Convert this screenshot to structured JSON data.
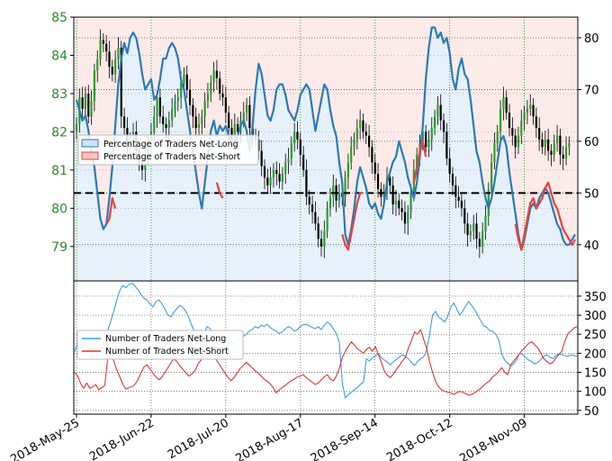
{
  "chart_data": [
    {
      "type": "line",
      "panel": "top",
      "x_tick_labels": [
        "2018-May-25",
        "2018-Jun-22",
        "2018-Jul-20",
        "2018-Aug-17",
        "2018-Sep-14",
        "2018-Oct-12",
        "2018-Nov-09"
      ],
      "left_axis": {
        "ticks": [
          "79",
          "80",
          "81",
          "82",
          "83",
          "84",
          "85"
        ],
        "ylim": [
          78.1,
          85.0
        ],
        "color": "#2a8a2a"
      },
      "right_axis": {
        "ticks": [
          "40",
          "50",
          "60",
          "70",
          "80"
        ],
        "ylim": [
          33,
          84
        ]
      },
      "reference_line": 50,
      "legend": [
        {
          "label": "Percentage of Traders Net-Long",
          "color": "#2a7ab8",
          "fill": "#cfe2f7"
        },
        {
          "label": "Percentage of Traders Net-Short",
          "color": "#e8433a",
          "fill": "#f6c9c5"
        }
      ],
      "series": [
        {
          "name": "Percentage of Traders Net-Long (%)",
          "x": [
            0,
            1,
            2,
            3,
            4,
            5,
            6,
            7,
            8,
            9,
            10,
            11,
            12,
            13,
            14,
            15,
            16,
            17,
            18,
            19,
            20,
            21,
            22,
            23,
            24,
            25,
            26,
            27,
            28,
            29,
            30,
            31,
            32,
            33,
            34,
            35,
            36,
            37,
            38,
            39,
            40,
            41,
            42,
            43,
            44,
            45,
            46,
            47,
            48,
            49,
            50,
            51,
            52,
            53,
            54,
            55,
            56,
            57,
            58,
            59,
            60,
            61,
            62,
            63,
            64,
            65,
            66,
            67,
            68,
            69,
            70,
            71,
            72,
            73,
            74,
            75,
            76,
            77,
            78,
            79,
            80,
            81,
            82,
            83,
            84,
            85,
            86,
            87,
            88,
            89,
            90,
            91,
            92,
            93,
            94,
            95,
            96,
            97,
            98,
            99,
            100,
            101,
            102,
            103,
            104,
            105,
            106,
            107,
            108,
            109,
            110,
            111,
            112,
            113,
            114,
            115,
            116,
            117,
            118,
            119,
            120,
            121,
            122,
            123,
            124,
            125,
            126,
            127,
            128,
            129,
            130,
            131,
            132,
            133,
            134,
            135,
            136,
            137,
            138,
            139,
            140,
            141,
            142,
            143,
            144,
            145,
            146,
            147,
            148,
            149,
            150,
            151,
            152,
            153,
            154,
            155,
            156,
            157,
            158,
            159,
            160,
            161,
            162,
            163,
            164,
            165,
            166,
            167
          ],
          "values": [
            68,
            66,
            64,
            65,
            62,
            58,
            55,
            50,
            45,
            43,
            44,
            49,
            55,
            63,
            71,
            76,
            79,
            77,
            80,
            81,
            80,
            77,
            73,
            70,
            71,
            72,
            68,
            69,
            72,
            76,
            76,
            78,
            79,
            78,
            76,
            72,
            70,
            66,
            62,
            58,
            54,
            50,
            47,
            52,
            57,
            62,
            64,
            61,
            63,
            62,
            63,
            61,
            60,
            60,
            61,
            63,
            64,
            62,
            58,
            63,
            70,
            75,
            73,
            69,
            65,
            64,
            66,
            70,
            71,
            71,
            69,
            66,
            65,
            64,
            66,
            69,
            70,
            71,
            70,
            66,
            62,
            65,
            68,
            71,
            70,
            66,
            63,
            61,
            56,
            52,
            42,
            40,
            43,
            47,
            52,
            55,
            53,
            51,
            48,
            47,
            48,
            46,
            45,
            48,
            52,
            54,
            56,
            57,
            60,
            58,
            56,
            53,
            51,
            49,
            52,
            57,
            63,
            72,
            78,
            82,
            82,
            80,
            81,
            79,
            80,
            77,
            72,
            70,
            74,
            76,
            73,
            72,
            68,
            63,
            58,
            56,
            52,
            49,
            47,
            49,
            52,
            56,
            60,
            61,
            59,
            54,
            50,
            46,
            42,
            39,
            41,
            44,
            47,
            48,
            47,
            49,
            50,
            51,
            50,
            48,
            46,
            44,
            43,
            41,
            40,
            40,
            41,
            42
          ]
        },
        {
          "name": "Percentage of Traders Net-Short (%)",
          "segments": [
            {
              "x": [
                10,
                11,
                12,
                13
              ],
              "values": [
                44,
                45,
                49,
                47
              ]
            },
            {
              "x": [
                47,
                48,
                49
              ],
              "values": [
                52,
                50,
                49
              ]
            },
            {
              "x": [
                89,
                90,
                91,
                92,
                93,
                94,
                95,
                96
              ],
              "values": [
                42,
                40,
                39,
                42,
                45,
                48,
                50,
                50
              ]
            },
            {
              "x": [
                113,
                114,
                115,
                116,
                117
              ],
              "values": [
                52,
                55,
                58,
                60,
                57
              ]
            },
            {
              "x": [
                147,
                148,
                149,
                150,
                151,
                152,
                153,
                154,
                155,
                156,
                157,
                158,
                159,
                160,
                161,
                162,
                163,
                164,
                165,
                166,
                167
              ],
              "values": [
                44,
                41,
                39,
                42,
                45,
                48,
                49,
                47,
                48,
                49,
                51,
                52,
                50,
                48,
                47,
                45,
                43,
                42,
                41,
                40,
                41
              ]
            }
          ]
        },
        {
          "name": "Price (candlesticks, left axis)",
          "close": [
            82.2,
            82.9,
            82.6,
            83.0,
            82.4,
            82.8,
            83.6,
            83.9,
            84.4,
            84.3,
            84.1,
            83.7,
            83.5,
            83.9,
            84.2,
            82.4,
            82.1,
            81.6,
            81.8,
            82.0,
            81.5,
            81.2,
            81.0,
            81.3,
            81.7,
            82.0,
            82.4,
            82.9,
            82.4,
            82.2,
            82.1,
            82.3,
            82.6,
            82.8,
            82.9,
            83.3,
            83.5,
            83.1,
            82.7,
            82.4,
            82.1,
            82.2,
            82.4,
            82.8,
            83.0,
            83.3,
            83.6,
            83.4,
            83.0,
            82.9,
            82.5,
            82.1,
            81.8,
            82.2,
            82.0,
            82.3,
            82.5,
            82.7,
            82.1,
            81.9,
            81.8,
            81.5,
            81.1,
            80.8,
            80.6,
            80.8,
            81.0,
            80.9,
            80.7,
            80.9,
            81.2,
            81.3,
            81.7,
            82.0,
            81.8,
            81.4,
            81.0,
            80.3,
            80.1,
            79.9,
            79.6,
            79.2,
            79.0,
            79.4,
            80.0,
            80.3,
            80.6,
            80.2,
            80.4,
            80.3,
            80.8,
            81.2,
            81.6,
            81.8,
            82.1,
            82.3,
            82.0,
            81.9,
            81.6,
            81.2,
            80.9,
            80.5,
            80.3,
            80.4,
            80.8,
            80.6,
            80.1,
            80.2,
            80.0,
            79.9,
            79.6,
            79.9,
            80.4,
            81.0,
            81.4,
            81.7,
            82.0,
            81.6,
            81.8,
            82.1,
            82.4,
            82.7,
            82.3,
            82.0,
            81.3,
            80.9,
            80.6,
            80.3,
            80.2,
            80.0,
            79.6,
            79.3,
            79.4,
            79.6,
            79.2,
            79.0,
            79.4,
            79.8,
            80.5,
            81.2,
            81.7,
            82.0,
            82.6,
            82.9,
            82.5,
            82.1,
            81.9,
            81.6,
            81.9,
            82.3,
            82.5,
            82.6,
            82.7,
            82.4,
            82.1,
            81.8,
            81.6,
            81.8,
            81.5,
            81.4,
            81.7,
            81.9,
            81.4,
            81.3,
            81.6,
            81.7
          ]
        }
      ]
    },
    {
      "type": "line",
      "panel": "bottom",
      "right_axis": {
        "ticks": [
          "50",
          "100",
          "150",
          "200",
          "250",
          "300",
          "350"
        ],
        "ylim": [
          40,
          390
        ]
      },
      "legend": [
        {
          "label": "Number of Traders Net-Long",
          "color": "#3a9ee8"
        },
        {
          "label": "Number of Traders Net-Short",
          "color": "#e8322c"
        }
      ],
      "series": [
        {
          "name": "Number of Traders Net-Long",
          "values": [
            205,
            228,
            240,
            236,
            222,
            210,
            190,
            188,
            196,
            215,
            240,
            260,
            285,
            310,
            340,
            365,
            378,
            372,
            380,
            384,
            376,
            368,
            355,
            345,
            340,
            330,
            322,
            335,
            340,
            330,
            316,
            300,
            296,
            308,
            318,
            326,
            320,
            310,
            292,
            272,
            255,
            240,
            230,
            252,
            270,
            265,
            248,
            232,
            222,
            214,
            208,
            220,
            230,
            226,
            235,
            240,
            244,
            250,
            258,
            262,
            270,
            266,
            274,
            270,
            276,
            268,
            262,
            258,
            252,
            256,
            264,
            270,
            266,
            258,
            262,
            270,
            275,
            276,
            272,
            268,
            265,
            270,
            262,
            274,
            282,
            276,
            264,
            252,
            230,
            120,
            82,
            92,
            98,
            104,
            110,
            118,
            124,
            185,
            180,
            188,
            194,
            198,
            188,
            182,
            176,
            170,
            178,
            184,
            190,
            196,
            192,
            185,
            176,
            168,
            178,
            186,
            190,
            206,
            250,
            300,
            310,
            295,
            290,
            282,
            296,
            320,
            332,
            318,
            300,
            310,
            324,
            336,
            326,
            314,
            300,
            286,
            272,
            268,
            260,
            258,
            250,
            236,
            198,
            182,
            174,
            166,
            172,
            184,
            200,
            196,
            188,
            182,
            178,
            172,
            176,
            184,
            192,
            196,
            190,
            186,
            194,
            198,
            196,
            194,
            192,
            196,
            194,
            192
          ]
        },
        {
          "name": "Number of Traders Net-Short",
          "values": [
            150,
            140,
            120,
            108,
            122,
            108,
            112,
            118,
            104,
            110,
            116,
            190,
            198,
            180,
            156,
            138,
            118,
            106,
            110,
            112,
            118,
            130,
            148,
            164,
            170,
            160,
            148,
            138,
            130,
            138,
            150,
            162,
            175,
            186,
            178,
            166,
            158,
            148,
            140,
            146,
            154,
            172,
            182,
            200,
            212,
            206,
            196,
            184,
            172,
            160,
            148,
            136,
            128,
            136,
            148,
            160,
            168,
            176,
            170,
            162,
            154,
            148,
            140,
            132,
            126,
            120,
            110,
            96,
            104,
            110,
            116,
            122,
            128,
            132,
            138,
            140,
            144,
            136,
            130,
            124,
            118,
            122,
            130,
            138,
            144,
            132,
            128,
            140,
            160,
            190,
            205,
            218,
            230,
            222,
            212,
            206,
            200,
            210,
            216,
            205,
            218,
            196,
            176,
            152,
            142,
            136,
            146,
            158,
            168,
            180,
            190,
            214,
            234,
            256,
            250,
            262,
            238,
            214,
            178,
            150,
            126,
            112,
            104,
            100,
            98,
            96,
            92,
            96,
            100,
            98,
            94,
            90,
            92,
            96,
            102,
            108,
            116,
            122,
            128,
            138,
            144,
            152,
            162,
            150,
            144,
            170,
            180,
            190,
            200,
            210,
            218,
            226,
            230,
            222,
            214,
            200,
            186,
            178,
            172,
            176,
            188,
            196,
            206,
            232,
            252,
            258,
            266,
            270
          ]
        }
      ]
    }
  ]
}
